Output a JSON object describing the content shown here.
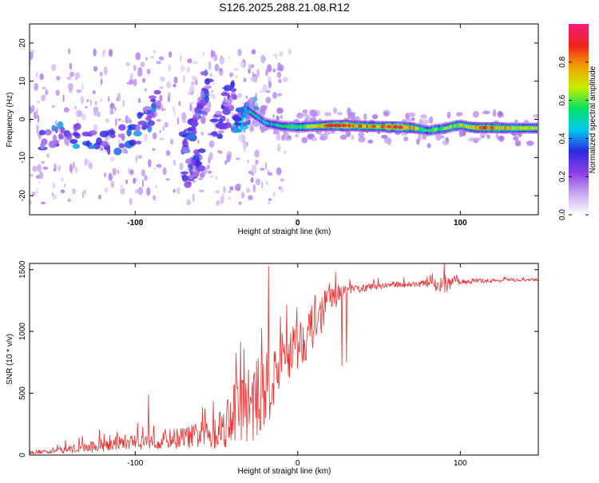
{
  "title": "S126.2025.288.21.08.R12",
  "chart_data": [
    {
      "type": "heatmap",
      "xlabel": "Height of straight line (km)",
      "ylabel": "Frequency (Hz)",
      "xlim": [
        -165,
        148
      ],
      "ylim": [
        -25,
        25
      ],
      "x_ticks": [
        -100,
        0,
        100
      ],
      "y_ticks": [
        20,
        10,
        0,
        -10,
        -20
      ],
      "colorbar": {
        "label": "Normalized spectral amplitude",
        "range": [
          0,
          1
        ],
        "ticks": [
          0.0,
          0.2,
          0.4,
          0.6,
          0.8
        ],
        "stops": [
          "#ffffff",
          "#c8a8f0",
          "#8a3ee8",
          "#2a2ae0",
          "#00c8f0",
          "#00e060",
          "#c8f000",
          "#f0a000",
          "#f02020",
          "#f0207a"
        ]
      },
      "ridge": {
        "x": [
          -30,
          -25,
          -20,
          -10,
          0,
          10,
          20,
          30,
          40,
          50,
          60,
          70,
          75,
          80,
          85,
          90,
          95,
          100,
          105,
          110,
          120,
          130,
          140,
          147
        ],
        "y": [
          2.0,
          0.5,
          -1.0,
          -1.8,
          -2.0,
          -1.8,
          -1.6,
          -1.6,
          -1.8,
          -1.9,
          -2.0,
          -2.2,
          -2.6,
          -3.0,
          -2.6,
          -2.4,
          -1.8,
          -1.5,
          -2.0,
          -2.2,
          -2.2,
          -2.3,
          -2.3,
          -2.3
        ],
        "amplitude": [
          0.5,
          0.45,
          0.45,
          0.5,
          0.6,
          0.7,
          0.85,
          0.9,
          0.75,
          0.8,
          0.9,
          0.8,
          0.6,
          0.55,
          0.6,
          0.65,
          0.6,
          0.7,
          0.7,
          0.8,
          0.8,
          0.75,
          0.7,
          0.65
        ]
      },
      "branches": [
        {
          "x": [
            -160,
            -145,
            -130,
            -115,
            -100,
            -92,
            -85
          ],
          "y": [
            -5,
            -4,
            -5,
            -6,
            -4,
            1,
            7
          ],
          "amplitude": 0.35
        },
        {
          "x": [
            -70,
            -66,
            -62,
            -58,
            -54
          ],
          "y": [
            -6,
            -4,
            -2,
            3,
            13
          ],
          "amplitude": 0.35
        },
        {
          "x": [
            -68,
            -64,
            -62,
            -60
          ],
          "y": [
            -15,
            -13,
            -12,
            -10
          ],
          "amplitude": 0.3
        },
        {
          "x": [
            -50,
            -46,
            -42,
            -38
          ],
          "y": [
            -3,
            0,
            5,
            10
          ],
          "amplitude": 0.3
        },
        {
          "x": [
            -40,
            -36,
            -32,
            -28
          ],
          "y": [
            -1,
            0,
            1,
            3
          ],
          "amplitude": 0.4
        }
      ]
    },
    {
      "type": "line",
      "xlabel": "Height of straight line (km)",
      "ylabel": "SNR (10 * v/v)",
      "xlim": [
        -165,
        148
      ],
      "ylim": [
        0,
        1550
      ],
      "x_ticks": [
        -100,
        0,
        100
      ],
      "y_ticks": [
        0,
        500,
        1000,
        1500
      ],
      "color": "#ee3030",
      "series": [
        {
          "name": "SNR",
          "x": [
            -165,
            -150,
            -140,
            -130,
            -120,
            -110,
            -100,
            -90,
            -80,
            -70,
            -60,
            -50,
            -45,
            -40,
            -35,
            -30,
            -25,
            -20,
            -15,
            -10,
            -5,
            0,
            5,
            10,
            15,
            20,
            25,
            30,
            40,
            50,
            60,
            70,
            80,
            85,
            90,
            95,
            100,
            110,
            120,
            130,
            140,
            148
          ],
          "y": [
            20,
            35,
            50,
            60,
            80,
            100,
            110,
            120,
            130,
            140,
            160,
            200,
            250,
            350,
            400,
            420,
            450,
            520,
            620,
            750,
            850,
            900,
            960,
            1050,
            1150,
            1250,
            1300,
            1330,
            1350,
            1370,
            1380,
            1380,
            1390,
            1380,
            1360,
            1400,
            1400,
            1410,
            1410,
            1415,
            1415,
            1420
          ],
          "noise": [
            15,
            25,
            35,
            45,
            55,
            60,
            70,
            75,
            80,
            90,
            110,
            160,
            200,
            260,
            300,
            320,
            330,
            300,
            280,
            250,
            240,
            220,
            200,
            180,
            160,
            120,
            80,
            50,
            30,
            30,
            25,
            25,
            30,
            50,
            80,
            40,
            25,
            20,
            15,
            15,
            12,
            12
          ],
          "spikes": [
            {
              "x": -92,
              "y": 490
            },
            {
              "x": -33,
              "y": 860
            },
            {
              "x": -18,
              "y": 1530
            },
            {
              "x": 27,
              "y": 720
            },
            {
              "x": 30,
              "y": 750
            },
            {
              "x": 90,
              "y": 1560
            }
          ]
        }
      ]
    }
  ]
}
